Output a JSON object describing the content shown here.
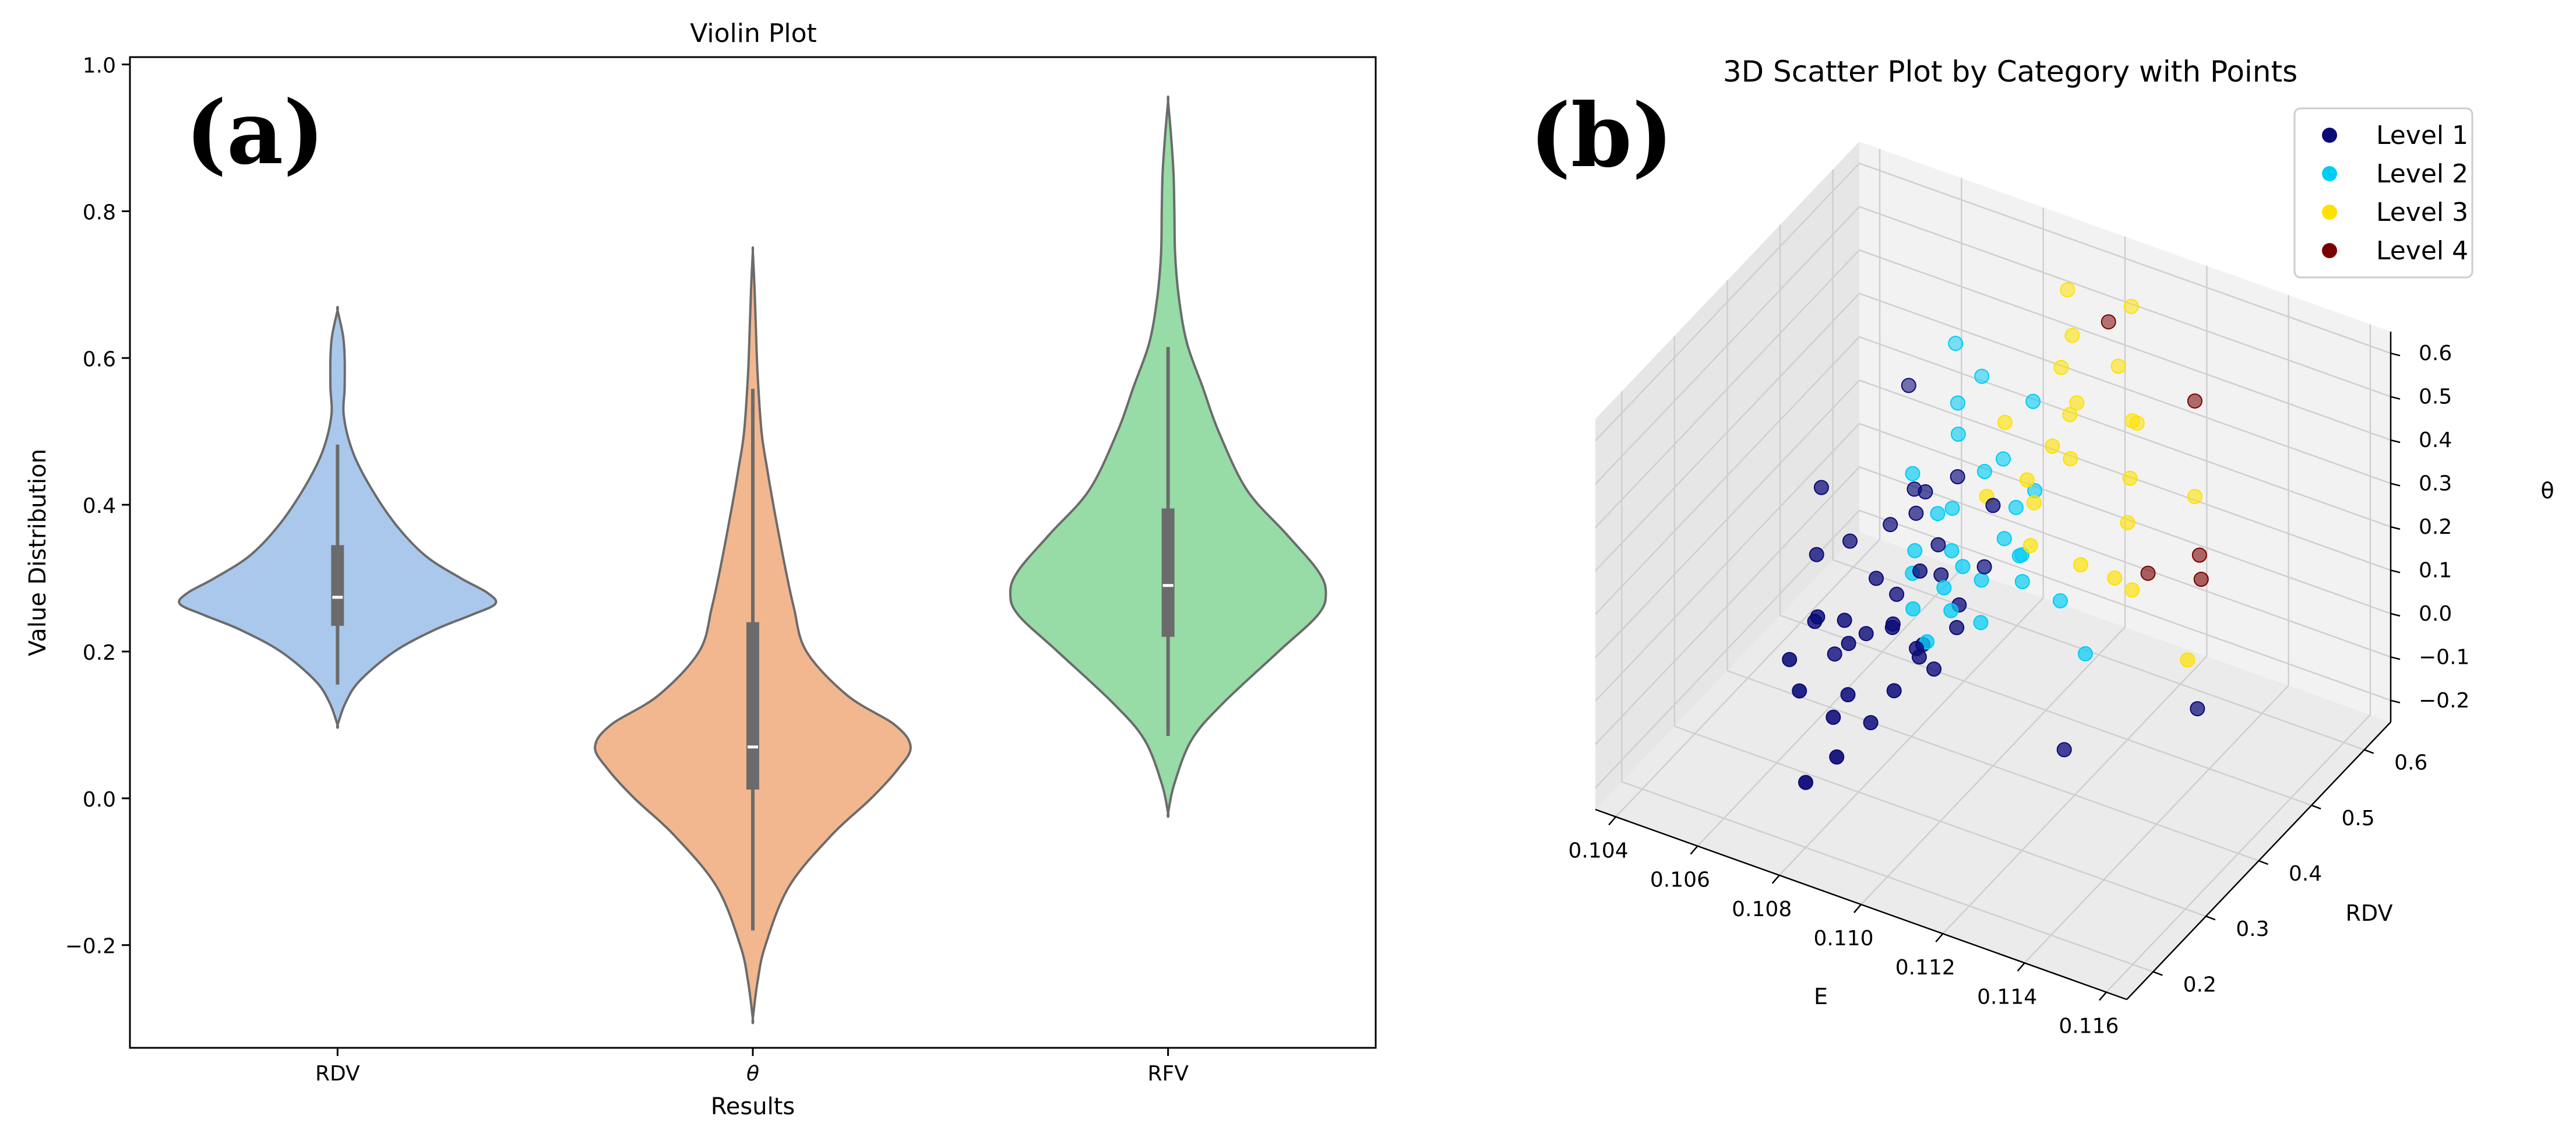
{
  "panel_a_label": "(a)",
  "panel_b_label": "(b)",
  "chart_data": [
    {
      "type": "violin",
      "title": "Violin Plot",
      "xlabel": "Results",
      "ylabel": "Value Distribution",
      "categories": [
        "RDV",
        "θ",
        "RFV"
      ],
      "ylim": [
        -0.34,
        1.01
      ],
      "yticks": [
        -0.2,
        0.0,
        0.2,
        0.4,
        0.6,
        0.8,
        1.0
      ],
      "ytick_labels": [
        "−0.2",
        "0.0",
        "0.2",
        "0.4",
        "0.6",
        "0.8",
        "1.0"
      ],
      "colors": [
        "#a9c8ec",
        "#f2b78f",
        "#97dba6"
      ],
      "outline_color": "#6b6b6b",
      "box_color": "#6b6b6b",
      "violins": [
        {
          "name": "RDV",
          "extent": [
            0.1,
            0.665
          ],
          "whisker": [
            0.155,
            0.482
          ],
          "q1": 0.235,
          "median": 0.274,
          "q3": 0.345,
          "density": [
            [
              0.1,
              0.0
            ],
            [
              0.13,
              0.05
            ],
            [
              0.16,
              0.14
            ],
            [
              0.2,
              0.36
            ],
            [
              0.23,
              0.62
            ],
            [
              0.25,
              0.85
            ],
            [
              0.265,
              1.0
            ],
            [
              0.28,
              0.95
            ],
            [
              0.3,
              0.78
            ],
            [
              0.33,
              0.56
            ],
            [
              0.37,
              0.38
            ],
            [
              0.42,
              0.22
            ],
            [
              0.47,
              0.1
            ],
            [
              0.52,
              0.04
            ],
            [
              0.56,
              0.045
            ],
            [
              0.6,
              0.045
            ],
            [
              0.63,
              0.035
            ],
            [
              0.665,
              0.0
            ]
          ]
        },
        {
          "name": "θ",
          "extent": [
            -0.3,
            0.745
          ],
          "whisker": [
            -0.18,
            0.558
          ],
          "q1": 0.012,
          "median": 0.07,
          "q3": 0.24,
          "density": [
            [
              -0.3,
              0.0
            ],
            [
              -0.25,
              0.03
            ],
            [
              -0.2,
              0.08
            ],
            [
              -0.12,
              0.23
            ],
            [
              -0.05,
              0.5
            ],
            [
              0.0,
              0.75
            ],
            [
              0.04,
              0.92
            ],
            [
              0.07,
              1.0
            ],
            [
              0.1,
              0.9
            ],
            [
              0.14,
              0.6
            ],
            [
              0.2,
              0.34
            ],
            [
              0.26,
              0.26
            ],
            [
              0.32,
              0.2
            ],
            [
              0.4,
              0.13
            ],
            [
              0.45,
              0.09
            ],
            [
              0.5,
              0.055
            ],
            [
              0.58,
              0.03
            ],
            [
              0.65,
              0.018
            ],
            [
              0.7,
              0.01
            ],
            [
              0.745,
              0.0
            ]
          ]
        },
        {
          "name": "RFV",
          "extent": [
            -0.02,
            0.95
          ],
          "whisker": [
            0.085,
            0.615
          ],
          "q1": 0.22,
          "median": 0.29,
          "q3": 0.395,
          "density": [
            [
              -0.02,
              0.0
            ],
            [
              0.02,
              0.04
            ],
            [
              0.08,
              0.15
            ],
            [
              0.13,
              0.35
            ],
            [
              0.2,
              0.7
            ],
            [
              0.25,
              0.95
            ],
            [
              0.28,
              1.0
            ],
            [
              0.31,
              0.95
            ],
            [
              0.36,
              0.75
            ],
            [
              0.42,
              0.5
            ],
            [
              0.5,
              0.32
            ],
            [
              0.56,
              0.22
            ],
            [
              0.62,
              0.12
            ],
            [
              0.68,
              0.07
            ],
            [
              0.74,
              0.045
            ],
            [
              0.8,
              0.04
            ],
            [
              0.85,
              0.035
            ],
            [
              0.9,
              0.02
            ],
            [
              0.95,
              0.0
            ]
          ]
        }
      ]
    },
    {
      "type": "scatter3d",
      "title": "3D Scatter Plot by Category with Points",
      "xlabel": "E",
      "ylabel": "RDV",
      "zlabel": "θ",
      "xlim": [
        0.1035,
        0.1165
      ],
      "ylim": [
        0.15,
        0.65
      ],
      "zlim": [
        -0.25,
        0.65
      ],
      "xticks": [
        0.104,
        0.106,
        0.108,
        0.11,
        0.112,
        0.114,
        0.116
      ],
      "xtick_labels": [
        "0.104",
        "0.106",
        "0.108",
        "0.110",
        "0.112",
        "0.114",
        "0.116"
      ],
      "yticks": [
        0.2,
        0.3,
        0.4,
        0.5,
        0.6
      ],
      "ytick_labels": [
        "0.2",
        "0.3",
        "0.4",
        "0.5",
        "0.6"
      ],
      "zticks": [
        -0.2,
        -0.1,
        0.0,
        0.1,
        0.2,
        0.3,
        0.4,
        0.5,
        0.6
      ],
      "ztick_labels": [
        "−0.2",
        "−0.1",
        "0.0",
        "0.1",
        "0.2",
        "0.3",
        "0.4",
        "0.5",
        "0.6"
      ],
      "legend_position": "top-right",
      "series": [
        {
          "name": "Level 1",
          "color": "#0a0a78",
          "points": [
            [
              0.1075,
              0.32,
              0.05
            ],
            [
              0.1082,
              0.35,
              0.08
            ],
            [
              0.107,
              0.3,
              0.12
            ],
            [
              0.1088,
              0.36,
              0.04
            ],
            [
              0.1079,
              0.38,
              0.1
            ],
            [
              0.1091,
              0.33,
              0.06
            ],
            [
              0.1065,
              0.4,
              0.15
            ],
            [
              0.1072,
              0.25,
              0.02
            ],
            [
              0.1084,
              0.42,
              0.18
            ],
            [
              0.1095,
              0.37,
              0.09
            ],
            [
              0.1069,
              0.34,
              -0.02
            ],
            [
              0.108,
              0.28,
              0.0
            ],
            [
              0.1087,
              0.31,
              0.14
            ],
            [
              0.1076,
              0.44,
              0.2
            ],
            [
              0.1093,
              0.39,
              0.11
            ],
            [
              0.1062,
              0.36,
              0.16
            ],
            [
              0.1085,
              0.22,
              -0.05
            ],
            [
              0.1073,
              0.46,
              0.22
            ],
            [
              0.109,
              0.29,
              0.03
            ],
            [
              0.1078,
              0.33,
              0.07
            ],
            [
              0.1081,
              0.48,
              0.25
            ],
            [
              0.1067,
              0.27,
              0.05
            ],
            [
              0.1086,
              0.41,
              0.13
            ],
            [
              0.1074,
              0.38,
              0.12
            ],
            [
              0.1092,
              0.35,
              0.01
            ],
            [
              0.1071,
              0.43,
              0.17
            ],
            [
              0.1083,
              0.3,
              -0.08
            ],
            [
              0.1077,
              0.45,
              0.24
            ],
            [
              0.1089,
              0.34,
              0.06
            ],
            [
              0.1068,
              0.31,
              0.09
            ],
            [
              0.1094,
              0.43,
              0.15
            ],
            [
              0.1058,
              0.4,
              0.25
            ],
            [
              0.106,
              0.55,
              0.3
            ],
            [
              0.11,
              0.4,
              0.35
            ],
            [
              0.108,
              0.2,
              -0.1
            ],
            [
              0.112,
              0.38,
              -0.12
            ],
            [
              0.115,
              0.4,
              0.05
            ],
            [
              0.1086,
              0.37,
              0.19
            ],
            [
              0.1079,
              0.26,
              -0.03
            ],
            [
              0.1074,
              0.32,
              0.1
            ]
          ]
        },
        {
          "name": "Level 2",
          "color": "#00ccf5",
          "points": [
            [
              0.108,
              0.45,
              0.2
            ],
            [
              0.109,
              0.42,
              0.15
            ],
            [
              0.1085,
              0.5,
              0.25
            ],
            [
              0.107,
              0.48,
              0.22
            ],
            [
              0.1095,
              0.46,
              0.18
            ],
            [
              0.1088,
              0.4,
              0.12
            ],
            [
              0.1076,
              0.52,
              0.28
            ],
            [
              0.1092,
              0.44,
              0.1
            ],
            [
              0.1083,
              0.38,
              0.08
            ],
            [
              0.1098,
              0.47,
              0.14
            ],
            [
              0.1072,
              0.55,
              0.3
            ],
            [
              0.1086,
              0.43,
              0.16
            ],
            [
              0.1094,
              0.49,
              0.21
            ],
            [
              0.1079,
              0.41,
              0.11
            ],
            [
              0.11,
              0.45,
              0.17
            ],
            [
              0.1074,
              0.58,
              0.33
            ],
            [
              0.1089,
              0.36,
              0.05
            ],
            [
              0.1096,
              0.51,
              0.23
            ],
            [
              0.1081,
              0.47,
              0.19
            ],
            [
              0.1091,
              0.39,
              0.09
            ],
            [
              0.1065,
              0.6,
              0.35
            ],
            [
              0.111,
              0.45,
              0.1
            ],
            [
              0.1093,
              0.53,
              0.4
            ],
            [
              0.112,
              0.42,
              0.05
            ],
            [
              0.1102,
              0.44,
              0.13
            ],
            [
              0.1077,
              0.43,
              0.13
            ],
            [
              0.1087,
              0.52,
              0.26
            ],
            [
              0.1097,
              0.4,
              0.07
            ]
          ]
        },
        {
          "name": "Level 3",
          "color": "#ffe100",
          "points": [
            [
              0.11,
              0.55,
              0.55
            ],
            [
              0.1095,
              0.58,
              0.6
            ],
            [
              0.1105,
              0.52,
              0.45
            ],
            [
              0.109,
              0.5,
              0.38
            ],
            [
              0.111,
              0.56,
              0.5
            ],
            [
              0.1098,
              0.48,
              0.3
            ],
            [
              0.1115,
              0.45,
              0.2
            ],
            [
              0.1102,
              0.53,
              0.4
            ],
            [
              0.112,
              0.5,
              0.25
            ],
            [
              0.1108,
              0.6,
              0.58
            ],
            [
              0.1125,
              0.47,
              0.15
            ],
            [
              0.1092,
              0.45,
              0.28
            ],
            [
              0.1118,
              0.52,
              0.32
            ],
            [
              0.1112,
              0.58,
              0.35
            ],
            [
              0.113,
              0.55,
              0.28
            ],
            [
              0.1104,
              0.44,
              0.22
            ],
            [
              0.1096,
              0.56,
              0.45
            ],
            [
              0.1122,
              0.46,
              0.18
            ],
            [
              0.1145,
              0.42,
              0.12
            ],
            [
              0.1106,
              0.5,
              0.35
            ],
            [
              0.1116,
              0.54,
              0.42
            ],
            [
              0.1099,
              0.52,
              0.33
            ],
            [
              0.1101,
              0.47,
              0.27
            ]
          ]
        },
        {
          "name": "Level 4",
          "color": "#7a0000",
          "points": [
            [
              0.1105,
              0.58,
              0.56
            ],
            [
              0.113,
              0.55,
              0.5
            ],
            [
              0.1135,
              0.52,
              0.2
            ],
            [
              0.1125,
              0.5,
              0.15
            ],
            [
              0.1138,
              0.5,
              0.18
            ]
          ]
        }
      ]
    }
  ]
}
